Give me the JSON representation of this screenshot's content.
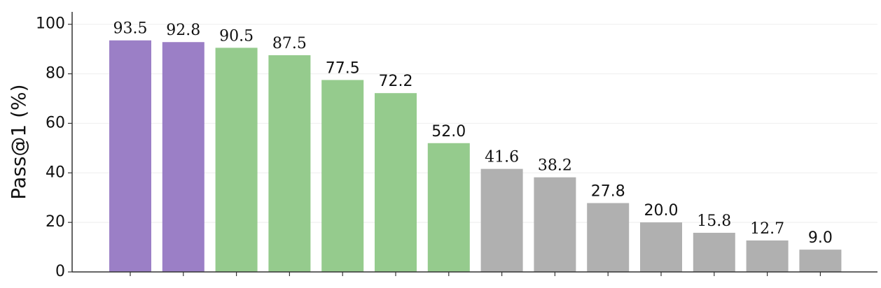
{
  "chart_data": {
    "type": "bar",
    "ylabel": "Pass@1 (%)",
    "categories": [
      null,
      null,
      null,
      null,
      null,
      null,
      null,
      null,
      null,
      null,
      null,
      null,
      null,
      null
    ],
    "series": [
      {
        "values": [
          93.5,
          92.8,
          90.5,
          87.5,
          77.5,
          72.2,
          52.0,
          41.6,
          38.2,
          27.8,
          20.0,
          15.8,
          12.7,
          9.0
        ],
        "value_labels": [
          "93.5",
          "92.8",
          "90.5",
          "87.5",
          "77.5",
          "72.2",
          "52.0",
          "41.6",
          "38.2",
          "27.8",
          "20.0",
          "15.8",
          "12.7",
          "9.0"
        ],
        "colors": [
          "#9b7fc6",
          "#9b7fc6",
          "#95cb8d",
          "#95cb8d",
          "#95cb8d",
          "#95cb8d",
          "#95cb8d",
          "#b0b0b0",
          "#b0b0b0",
          "#b0b0b0",
          "#b0b0b0",
          "#b0b0b0",
          "#b0b0b0",
          "#b0b0b0"
        ]
      }
    ],
    "ylim": [
      0,
      105
    ],
    "yticks": [
      0,
      20,
      40,
      60,
      80,
      100
    ],
    "grid": true
  }
}
